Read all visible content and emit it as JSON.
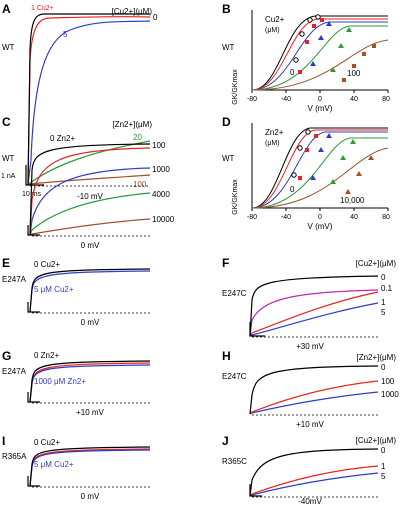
{
  "colors": {
    "black": "#000000",
    "red": "#e8231f",
    "blue": "#2f3dc4",
    "green": "#2e9a3a",
    "brown": "#a0522d",
    "magenta": "#c026b0"
  },
  "panels": {
    "A": {
      "letter": "A",
      "genotype": "WT",
      "units": "[Cu2+](μM)",
      "trace_labels": [
        "0",
        "1 Cu2+",
        "5",
        "20",
        "100"
      ],
      "scale_y": "1 nA",
      "scale_x": "10 ms",
      "voltage": "-10 mV"
    },
    "B": {
      "letter": "B",
      "genotype": "WT",
      "legend": "Cu2+",
      "legend_units": "(μM)",
      "curve_labels": [
        "0",
        "100"
      ],
      "ylabel": "GK/GKmax",
      "xlabel": "V (mV)",
      "xticks": [
        "-80",
        "-40",
        "0",
        "40",
        "80"
      ],
      "yticks": [
        "0",
        "0.5",
        "1"
      ]
    },
    "C": {
      "letter": "C",
      "genotype": "WT",
      "units": "[Zn2+](μM)",
      "trace_labels": [
        "0 Zn2+",
        "100",
        "1000",
        "4000",
        "10000"
      ],
      "voltage": "0 mV"
    },
    "D": {
      "letter": "D",
      "genotype": "WT",
      "legend": "Zn2+",
      "legend_units": "(μM)",
      "curve_labels": [
        "0",
        "10,000"
      ],
      "ylabel": "GK/GKmax",
      "xlabel": "V (mV)",
      "xticks": [
        "-80",
        "-40",
        "0",
        "40",
        "80"
      ],
      "yticks": [
        "0",
        "0.5",
        "1"
      ]
    },
    "E": {
      "letter": "E",
      "genotype": "E247A",
      "label_top": "0 Cu2+",
      "label_bottom": "5 μM Cu2+",
      "voltage": "0 mV"
    },
    "F": {
      "letter": "F",
      "genotype": "E247C",
      "units": "[Cu2+](μM)",
      "trace_labels": [
        "0",
        "0.1",
        "1",
        "5"
      ],
      "voltage": "+30 mV"
    },
    "G": {
      "letter": "G",
      "genotype": "E247A",
      "label_top": "0 Zn2+",
      "label_bottom": "1000 μM Zn2+",
      "voltage": "+10 mV"
    },
    "H": {
      "letter": "H",
      "genotype": "E247C",
      "units": "[Zn2+](μM)",
      "trace_labels": [
        "0",
        "100",
        "1000"
      ],
      "voltage": "+10 mV"
    },
    "I": {
      "letter": "I",
      "genotype": "R365A",
      "label_top": "0 Cu2+",
      "label_bottom": "5 μM Cu2+",
      "voltage": "0 mV"
    },
    "J": {
      "letter": "J",
      "genotype": "R365C",
      "units": "[Cu2+](μM)",
      "trace_labels": [
        "0",
        "1",
        "5"
      ],
      "voltage": "-40mV"
    }
  }
}
